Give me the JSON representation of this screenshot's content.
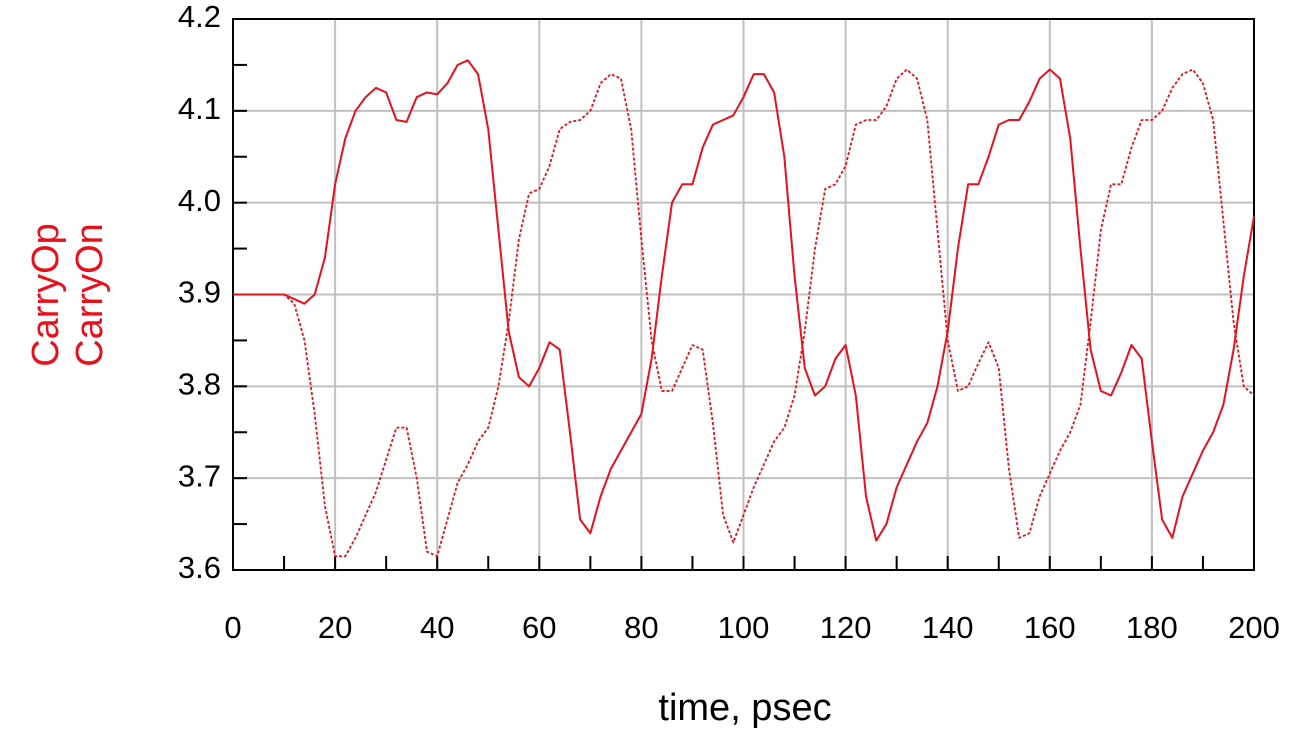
{
  "chart_data": {
    "type": "line",
    "xlabel": "time, psec",
    "x": [
      0,
      2,
      4,
      6,
      8,
      10,
      12,
      14,
      16,
      18,
      20,
      22,
      24,
      26,
      28,
      30,
      32,
      34,
      36,
      38,
      40,
      42,
      44,
      46,
      48,
      50,
      52,
      54,
      56,
      58,
      60,
      62,
      64,
      66,
      68,
      70,
      72,
      74,
      76,
      78,
      80,
      82,
      84,
      86,
      88,
      90,
      92,
      94,
      96,
      98,
      100,
      102,
      104,
      106,
      108,
      110,
      112,
      114,
      116,
      118,
      120,
      122,
      124,
      126,
      128,
      130,
      132,
      134,
      136,
      138,
      140,
      142,
      144,
      146,
      148,
      150,
      152,
      154,
      156,
      158,
      160,
      162,
      164,
      166,
      168,
      170,
      172,
      174,
      176,
      178,
      180,
      182,
      184,
      186,
      188,
      190,
      192,
      194,
      196,
      198,
      200
    ],
    "series": [
      {
        "name": "CarryOp",
        "color": "#e8101a",
        "dash": "solid",
        "values": [
          3.9,
          3.9,
          3.9,
          3.9,
          3.9,
          3.9,
          3.895,
          3.89,
          3.9,
          3.94,
          4.02,
          4.07,
          4.1,
          4.115,
          4.125,
          4.12,
          4.09,
          4.088,
          4.115,
          4.12,
          4.118,
          4.13,
          4.15,
          4.155,
          4.14,
          4.08,
          3.97,
          3.86,
          3.81,
          3.8,
          3.82,
          3.848,
          3.84,
          3.75,
          3.655,
          3.64,
          3.68,
          3.71,
          3.73,
          3.75,
          3.77,
          3.83,
          3.92,
          4.0,
          4.02,
          4.02,
          4.06,
          4.085,
          4.09,
          4.095,
          4.115,
          4.14,
          4.14,
          4.12,
          4.05,
          3.92,
          3.82,
          3.79,
          3.8,
          3.83,
          3.845,
          3.79,
          3.68,
          3.632,
          3.65,
          3.69,
          3.715,
          3.74,
          3.76,
          3.8,
          3.86,
          3.95,
          4.02,
          4.02,
          4.05,
          4.085,
          4.09,
          4.09,
          4.11,
          4.135,
          4.145,
          4.135,
          4.07,
          3.95,
          3.84,
          3.795,
          3.79,
          3.815,
          3.845,
          3.83,
          3.74,
          3.655,
          3.635,
          3.68,
          3.705,
          3.73,
          3.75,
          3.78,
          3.84,
          3.92,
          3.985
        ]
      },
      {
        "name": "CarryOn",
        "color": "#e8101a",
        "dash": "dashed",
        "values": [
          3.9,
          3.9,
          3.9,
          3.9,
          3.9,
          3.9,
          3.89,
          3.85,
          3.77,
          3.67,
          3.615,
          3.615,
          3.635,
          3.66,
          3.685,
          3.72,
          3.755,
          3.755,
          3.7,
          3.62,
          3.615,
          3.655,
          3.695,
          3.715,
          3.74,
          3.755,
          3.8,
          3.87,
          3.96,
          4.01,
          4.015,
          4.04,
          4.08,
          4.088,
          4.09,
          4.1,
          4.13,
          4.14,
          4.135,
          4.08,
          3.96,
          3.85,
          3.795,
          3.795,
          3.82,
          3.845,
          3.84,
          3.76,
          3.66,
          3.63,
          3.66,
          3.69,
          3.715,
          3.74,
          3.755,
          3.79,
          3.86,
          3.95,
          4.015,
          4.02,
          4.04,
          4.085,
          4.09,
          4.09,
          4.105,
          4.135,
          4.145,
          4.135,
          4.09,
          3.97,
          3.85,
          3.795,
          3.8,
          3.825,
          3.848,
          3.82,
          3.71,
          3.635,
          3.64,
          3.68,
          3.705,
          3.73,
          3.75,
          3.78,
          3.87,
          3.97,
          4.02,
          4.02,
          4.06,
          4.09,
          4.09,
          4.1,
          4.125,
          4.14,
          4.145,
          4.13,
          4.09,
          3.98,
          3.87,
          3.8,
          3.79
        ]
      }
    ],
    "xlim": [
      0,
      200
    ],
    "xticks": [
      0,
      20,
      40,
      60,
      80,
      100,
      120,
      140,
      160,
      180,
      200
    ],
    "xminorticks": [
      10,
      30,
      50,
      70,
      90,
      110,
      130,
      150,
      170,
      190
    ],
    "ylim": [
      3.6,
      4.2
    ],
    "yticks": [
      3.6,
      3.7,
      3.8,
      3.9,
      {
        "value": 4,
        "label": "4.0"
      },
      4.1,
      4.2
    ],
    "yminorticks": [
      3.65,
      3.75,
      3.85,
      3.95,
      4.05,
      4.15
    ],
    "grid": true
  }
}
